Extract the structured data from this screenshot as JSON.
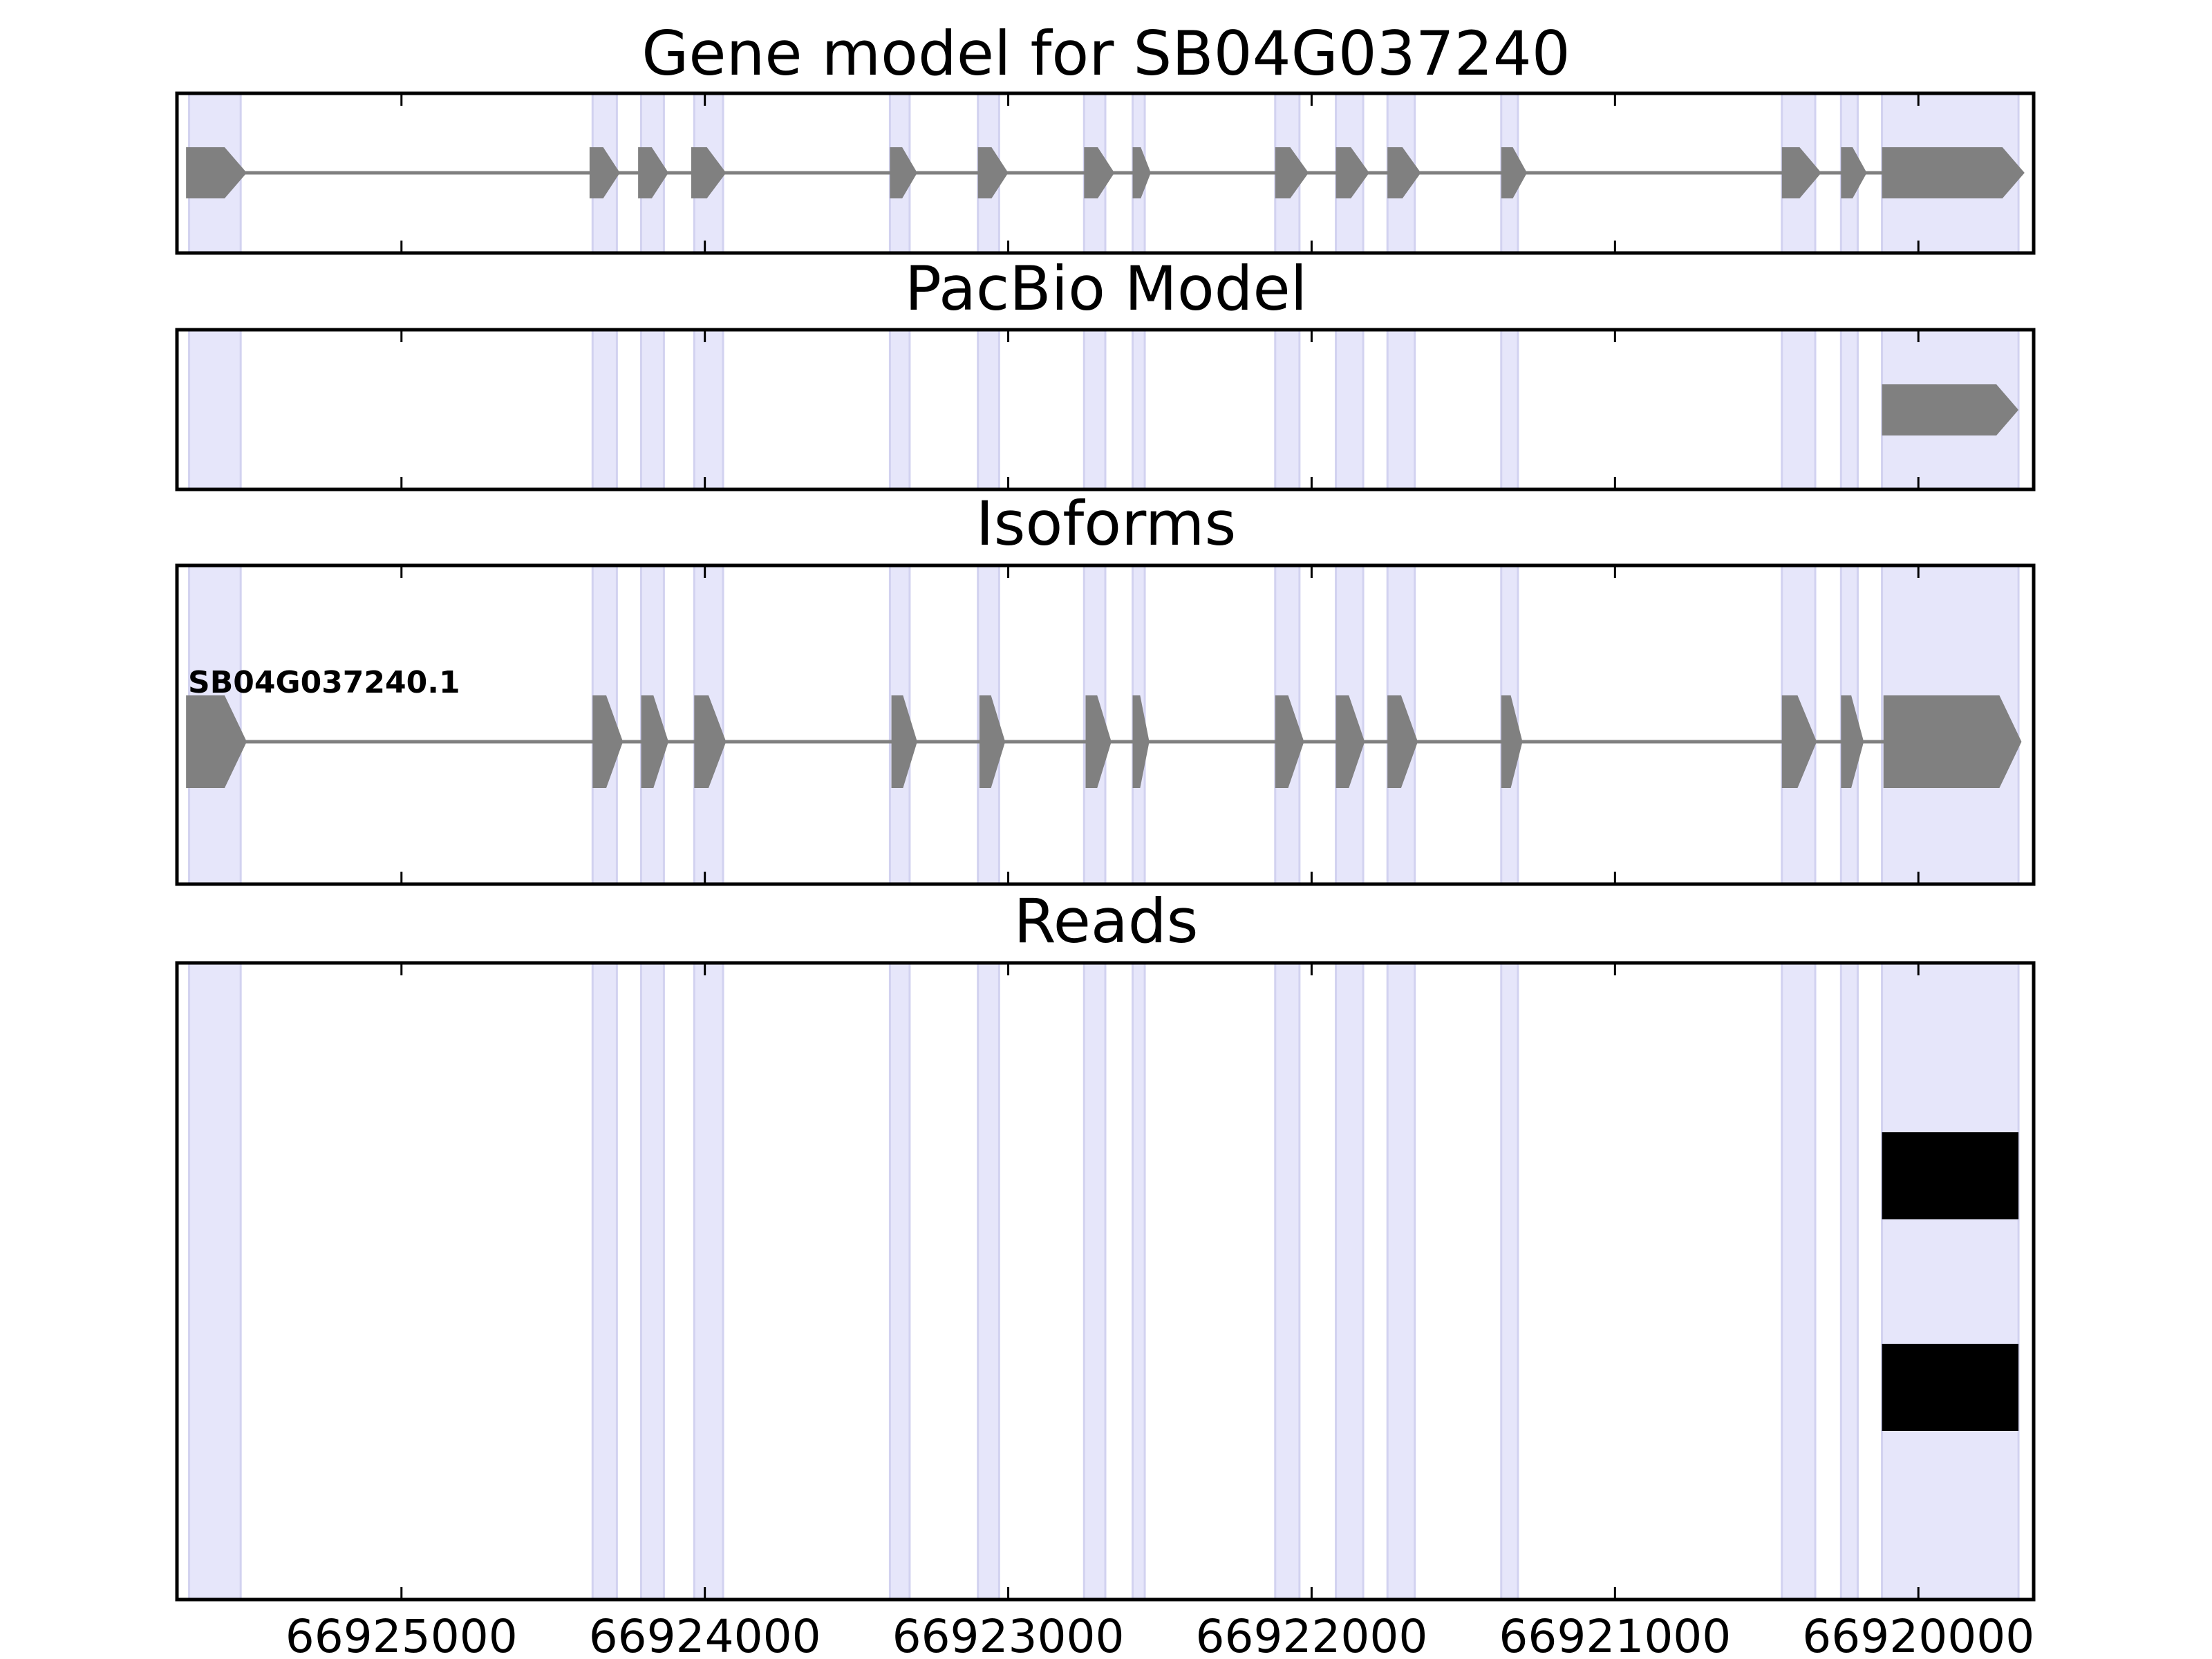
{
  "colors": {
    "exon_band": "#e6e6fa",
    "exon_band_edge": "#d2d2f0",
    "feature": "#808080",
    "read": "#000000",
    "frame": "#000000"
  },
  "chart_data": {
    "type": "gene-track",
    "x_axis": {
      "reversed": true,
      "xlim": [
        66925740,
        66919620
      ],
      "ticks": [
        66925000,
        66924000,
        66923000,
        66922000,
        66921000,
        66920000
      ],
      "tick_labels": [
        "66925000",
        "66924000",
        "66923000",
        "66922000",
        "66921000",
        "66920000"
      ]
    },
    "exon_bands": [
      [
        66925700,
        66925530
      ],
      [
        66924370,
        66924290
      ],
      [
        66924210,
        66924135
      ],
      [
        66924035,
        66923940
      ],
      [
        66923390,
        66923325
      ],
      [
        66923100,
        66923030
      ],
      [
        66922750,
        66922680
      ],
      [
        66922590,
        66922550
      ],
      [
        66922120,
        66922040
      ],
      [
        66921920,
        66921830
      ],
      [
        66921750,
        66921660
      ],
      [
        66921375,
        66921320
      ],
      [
        66920450,
        66920340
      ],
      [
        66920255,
        66920200
      ],
      [
        66920120,
        66919670
      ]
    ],
    "panels": [
      {
        "title": "Gene model for SB04G037240",
        "features": [
          {
            "label": "",
            "intron_line": [
              66925700,
              66919670
            ],
            "exons": [
              [
                66925710,
                66925510
              ],
              [
                66924380,
                66924280
              ],
              [
                66924220,
                66924120
              ],
              [
                66924045,
                66923930
              ],
              [
                66923390,
                66923300
              ],
              [
                66923100,
                66923000
              ],
              [
                66922750,
                66922650
              ],
              [
                66922590,
                66922530
              ],
              [
                66922120,
                66922010
              ],
              [
                66921920,
                66921810
              ],
              [
                66921750,
                66921640
              ],
              [
                66921375,
                66921290
              ],
              [
                66920450,
                66920320
              ],
              [
                66920255,
                66920170
              ],
              [
                66920120,
                66919650
              ]
            ]
          }
        ]
      },
      {
        "title": "PacBio Model",
        "features": [
          {
            "label": "",
            "exons": [
              [
                66920120,
                66919670
              ]
            ]
          }
        ]
      },
      {
        "title": "Isoforms",
        "features": [
          {
            "label": "SB04G037240.1",
            "intron_line": [
              66925700,
              66919670
            ],
            "exons": [
              [
                66925710,
                66925510
              ],
              [
                66924370,
                66924270
              ],
              [
                66924210,
                66924120
              ],
              [
                66924035,
                66923930
              ],
              [
                66923385,
                66923300
              ],
              [
                66923095,
                66923010
              ],
              [
                66922745,
                66922660
              ],
              [
                66922590,
                66922535
              ],
              [
                66922120,
                66922025
              ],
              [
                66921920,
                66921825
              ],
              [
                66921750,
                66921650
              ],
              [
                66921375,
                66921305
              ],
              [
                66920450,
                66920335
              ],
              [
                66920255,
                66920180
              ],
              [
                66920115,
                66919660
              ]
            ]
          }
        ]
      },
      {
        "title": "Reads",
        "reads": [
          {
            "range": [
              66920120,
              66919670
            ]
          },
          {
            "range": [
              66920120,
              66919670
            ]
          }
        ]
      }
    ]
  }
}
